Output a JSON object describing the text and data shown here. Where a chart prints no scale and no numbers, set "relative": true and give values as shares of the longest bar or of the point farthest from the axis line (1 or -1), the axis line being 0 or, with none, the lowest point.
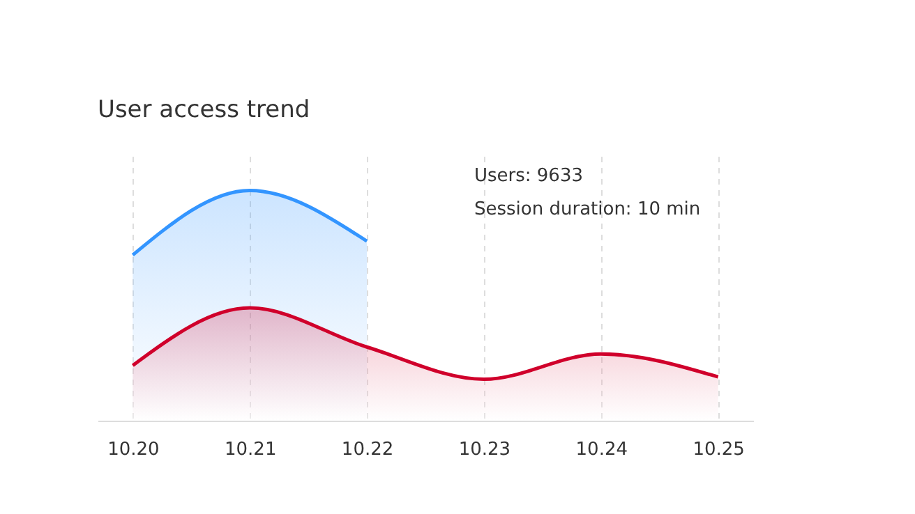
{
  "chart_data": {
    "type": "area",
    "title": "User access trend",
    "relative": true,
    "categories": [
      "10.20",
      "10.21",
      "10.22",
      "10.23",
      "10.24",
      "10.25"
    ],
    "series": [
      {
        "color": "#3395ff",
        "values": [
          0.72,
          1,
          0.78,
          null,
          null,
          null
        ]
      },
      {
        "color": "#d0002b",
        "values": [
          0.24,
          0.49,
          0.32,
          0.18,
          0.29,
          0.19
        ]
      }
    ],
    "grid": "x",
    "annotations": [
      "Users: 9633",
      "Session duration: 10 min"
    ]
  }
}
